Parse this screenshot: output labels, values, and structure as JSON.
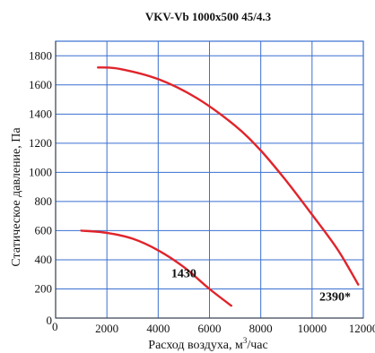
{
  "chart_data": {
    "type": "line",
    "title": "VKV-Vb 1000x500 45/4.3",
    "xlabel": "Расход воздуха, м",
    "xlabel_sup": "3",
    "xlabel_tail": "/час",
    "ylabel": "Статическое давление, Па",
    "xlim": [
      0,
      12000
    ],
    "ylim": [
      0,
      1900
    ],
    "x_ticks": [
      0,
      2000,
      4000,
      6000,
      8000,
      10000,
      12000
    ],
    "x_tick_labels": [
      "0",
      "2000",
      "4000",
      "6000",
      "8000",
      "10000",
      "12000"
    ],
    "y_ticks": [
      0,
      200,
      400,
      600,
      800,
      1000,
      1200,
      1400,
      1600,
      1800
    ],
    "y_tick_labels": [
      "0",
      "200",
      "400",
      "600",
      "800",
      "1000",
      "1200",
      "1400",
      "1600",
      "1800"
    ],
    "grid": true,
    "line_color": "#e0242b",
    "grid_color": "#3a6fd0",
    "series": [
      {
        "name": "1430",
        "x": [
          1000,
          2000,
          3000,
          4000,
          5000,
          6000,
          6850
        ],
        "y": [
          600,
          585,
          545,
          465,
          350,
          200,
          85
        ]
      },
      {
        "name": "2390*",
        "x": [
          1650,
          2500,
          4000,
          5500,
          7000,
          8000,
          9000,
          10000,
          11000,
          11800
        ],
        "y": [
          1720,
          1710,
          1640,
          1510,
          1320,
          1150,
          940,
          710,
          470,
          230
        ]
      }
    ],
    "annotations": [
      {
        "text": "1430",
        "x": 5000,
        "y": 280
      },
      {
        "text": "2390*",
        "x": 10900,
        "y": 120
      }
    ]
  }
}
